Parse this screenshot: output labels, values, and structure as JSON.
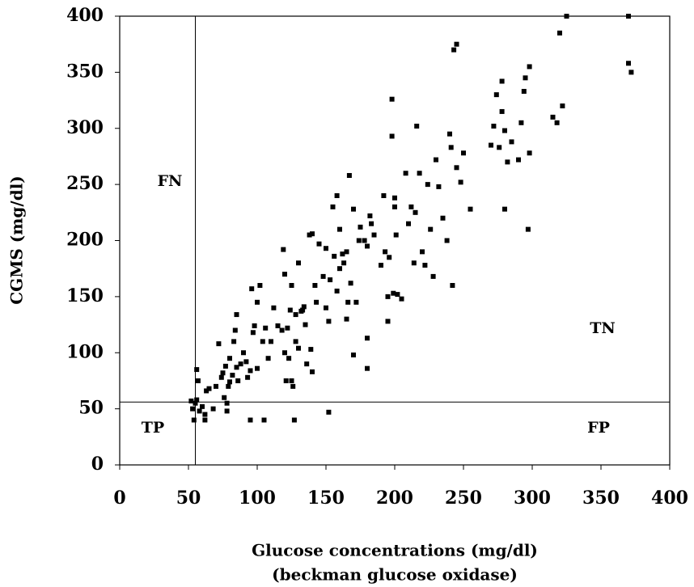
{
  "chart_data": {
    "type": "scatter",
    "x_label": [
      "Glucose concentrations (mg/dl)",
      "(beckman glucose oxidase)"
    ],
    "y_label": "CGMS (mg/dl)",
    "annotations": [
      "FN",
      "TN",
      "TP",
      "FP"
    ],
    "reference_lines": {
      "x": 55,
      "y": 56
    },
    "xlim": [
      0,
      400
    ],
    "ylim": [
      0,
      400
    ],
    "xticks": [
      0,
      50,
      100,
      150,
      200,
      250,
      300,
      350,
      400
    ],
    "yticks": [
      0,
      50,
      100,
      150,
      200,
      250,
      300,
      350,
      400
    ],
    "color": "#000000",
    "x": [
      52,
      53,
      54,
      55,
      56,
      56,
      57,
      58,
      60,
      62,
      62,
      63,
      65,
      68,
      70,
      72,
      74,
      75,
      76,
      77,
      78,
      78,
      79,
      80,
      80,
      82,
      83,
      84,
      85,
      85,
      86,
      88,
      90,
      92,
      93,
      95,
      95,
      96,
      97,
      98,
      100,
      100,
      102,
      104,
      105,
      106,
      108,
      110,
      112,
      115,
      118,
      119,
      120,
      120,
      121,
      122,
      123,
      124,
      125,
      125,
      126,
      127,
      128,
      128,
      130,
      130,
      132,
      133,
      134,
      135,
      136,
      138,
      139,
      140,
      140,
      142,
      143,
      145,
      148,
      150,
      150,
      152,
      152,
      153,
      155,
      156,
      158,
      158,
      160,
      160,
      162,
      163,
      165,
      165,
      166,
      167,
      168,
      170,
      170,
      172,
      174,
      175,
      178,
      180,
      180,
      180,
      182,
      183,
      185,
      190,
      192,
      193,
      195,
      195,
      196,
      198,
      198,
      199,
      200,
      200,
      201,
      202,
      205,
      208,
      210,
      212,
      214,
      215,
      216,
      218,
      220,
      222,
      224,
      226,
      228,
      230,
      232,
      235,
      238,
      240,
      241,
      242,
      243,
      245,
      245,
      248,
      250,
      255,
      270,
      272,
      274,
      276,
      278,
      278,
      280,
      280,
      282,
      285,
      290,
      292,
      294,
      295,
      297,
      298,
      298,
      315,
      318,
      320,
      322,
      325,
      370,
      370,
      372
    ],
    "y": [
      57,
      50,
      40,
      55,
      58,
      85,
      75,
      48,
      52,
      40,
      45,
      66,
      68,
      50,
      70,
      108,
      78,
      82,
      60,
      88,
      48,
      55,
      70,
      74,
      95,
      80,
      110,
      120,
      134,
      87,
      75,
      90,
      100,
      92,
      78,
      84,
      40,
      157,
      118,
      124,
      86,
      145,
      160,
      110,
      40,
      122,
      95,
      110,
      140,
      124,
      120,
      192,
      170,
      100,
      75,
      122,
      95,
      138,
      75,
      160,
      70,
      40,
      134,
      110,
      180,
      104,
      137,
      138,
      141,
      125,
      90,
      205,
      103,
      83,
      206,
      160,
      145,
      197,
      168,
      140,
      193,
      128,
      47,
      165,
      230,
      186,
      240,
      155,
      175,
      210,
      188,
      180,
      130,
      190,
      145,
      258,
      162,
      98,
      228,
      145,
      200,
      212,
      200,
      195,
      86,
      113,
      222,
      215,
      205,
      178,
      240,
      190,
      128,
      150,
      185,
      326,
      293,
      153,
      238,
      230,
      205,
      152,
      148,
      260,
      215,
      230,
      180,
      225,
      302,
      260,
      190,
      178,
      250,
      210,
      168,
      272,
      248,
      220,
      200,
      295,
      283,
      160,
      370,
      375,
      265,
      252,
      278,
      228,
      285,
      302,
      330,
      283,
      342,
      315,
      298,
      228,
      270,
      288,
      272,
      305,
      333,
      345,
      210,
      278,
      355,
      310,
      305,
      385,
      320,
      400,
      400,
      358,
      350
    ]
  }
}
